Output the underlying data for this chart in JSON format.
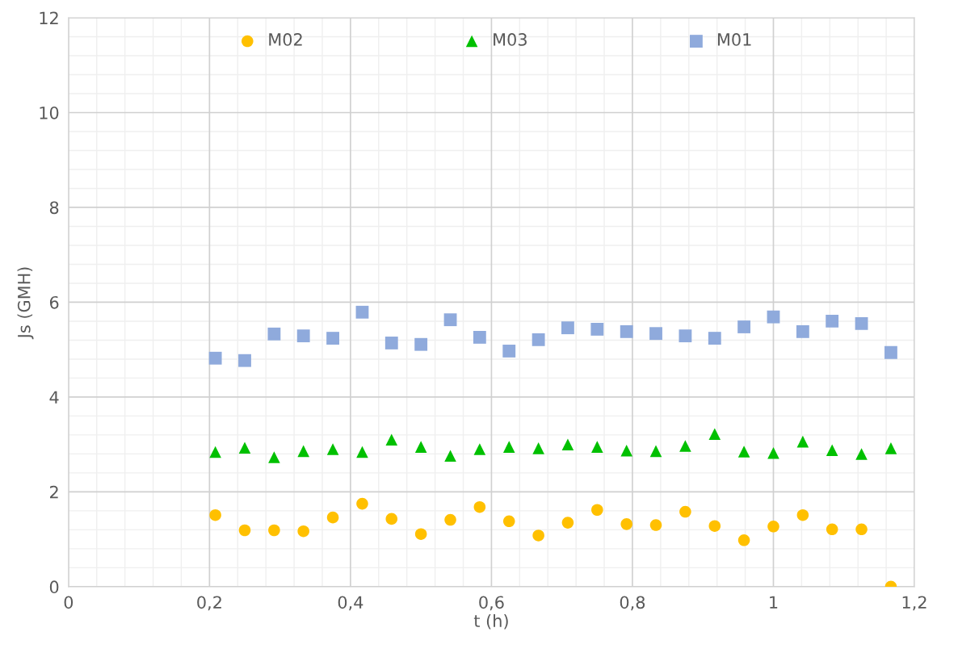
{
  "chart_data": {
    "type": "scatter",
    "xlabel": "t (h)",
    "ylabel": "Js (GMH)",
    "x": [
      0.2083,
      0.25,
      0.2917,
      0.3333,
      0.375,
      0.4167,
      0.4583,
      0.5,
      0.5417,
      0.5833,
      0.625,
      0.6667,
      0.7083,
      0.75,
      0.7917,
      0.8333,
      0.875,
      0.9167,
      0.9583,
      1.0,
      1.0417,
      1.0833,
      1.125,
      1.1667
    ],
    "series": [
      {
        "name": "M02",
        "color": "#ffc000",
        "marker": "circle",
        "values": [
          1.51,
          1.19,
          1.19,
          1.17,
          1.46,
          1.75,
          1.43,
          1.11,
          1.41,
          1.68,
          1.38,
          1.08,
          1.35,
          1.62,
          1.32,
          1.3,
          1.58,
          1.28,
          0.98,
          1.27,
          1.51,
          1.21,
          1.21,
          0
        ]
      },
      {
        "name": "M03",
        "color": "#00c000",
        "marker": "triangle",
        "values": [
          2.84,
          2.93,
          2.73,
          2.86,
          2.9,
          2.84,
          3.1,
          2.95,
          2.76,
          2.9,
          2.95,
          2.92,
          3.0,
          2.95,
          2.87,
          2.86,
          2.97,
          3.22,
          2.85,
          2.82,
          3.06,
          2.88,
          2.8,
          2.92
        ]
      },
      {
        "name": "M01",
        "color": "#8faadc",
        "marker": "square",
        "values": [
          4.82,
          4.77,
          5.33,
          5.29,
          5.24,
          5.79,
          5.14,
          5.11,
          5.63,
          5.26,
          4.97,
          5.21,
          5.46,
          5.43,
          5.38,
          5.34,
          5.29,
          5.24,
          5.48,
          5.69,
          5.38,
          5.6,
          5.55,
          4.94
        ]
      }
    ],
    "xlim": [
      0,
      1.2
    ],
    "xticks": [
      0,
      {
        "value": 0.2,
        "label": "0,2"
      },
      {
        "value": 0.4,
        "label": "0,4"
      },
      {
        "value": 0.6,
        "label": "0,6"
      },
      {
        "value": 0.8,
        "label": "0,8"
      },
      {
        "value": 1,
        "label": "1"
      },
      {
        "value": 1.2,
        "label": "1,2"
      }
    ],
    "ylim": [
      0,
      12
    ],
    "yticks": [
      0,
      2,
      4,
      6,
      8,
      10,
      12
    ],
    "grid": true,
    "legend": "top"
  }
}
